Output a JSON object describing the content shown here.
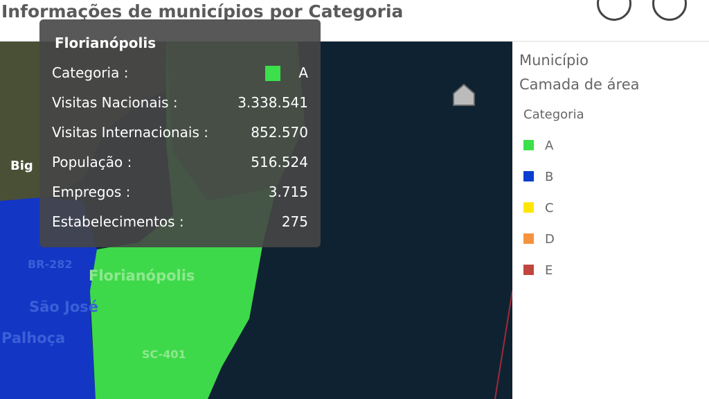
{
  "title": "Informações de municípios por Categoria",
  "tooltip": {
    "title": "Florianópolis",
    "rows": [
      {
        "label": "Categoria :",
        "value": "A"
      },
      {
        "label": "Visitas Nacionais :",
        "value": "3.338.541"
      },
      {
        "label": "Visitas Internacionais :",
        "value": "852.570"
      },
      {
        "label": "População :",
        "value": "516.524"
      },
      {
        "label": "Empregos :",
        "value": "3.715"
      },
      {
        "label": "Estabelecimentos :",
        "value": "275"
      }
    ]
  },
  "legend": {
    "layer": "Município",
    "layer_type": "Camada de área",
    "heading": "Categoria",
    "items": [
      {
        "label": "A",
        "color": "#3be04a"
      },
      {
        "label": "B",
        "color": "#0b3ecf"
      },
      {
        "label": "C",
        "color": "#ffe600"
      },
      {
        "label": "D",
        "color": "#f5923e"
      },
      {
        "label": "E",
        "color": "#c0463f"
      }
    ]
  },
  "map_labels": [
    "Big",
    "Florianópolis",
    "São José",
    "Palhoça",
    "BR-282",
    "SC-401"
  ]
}
